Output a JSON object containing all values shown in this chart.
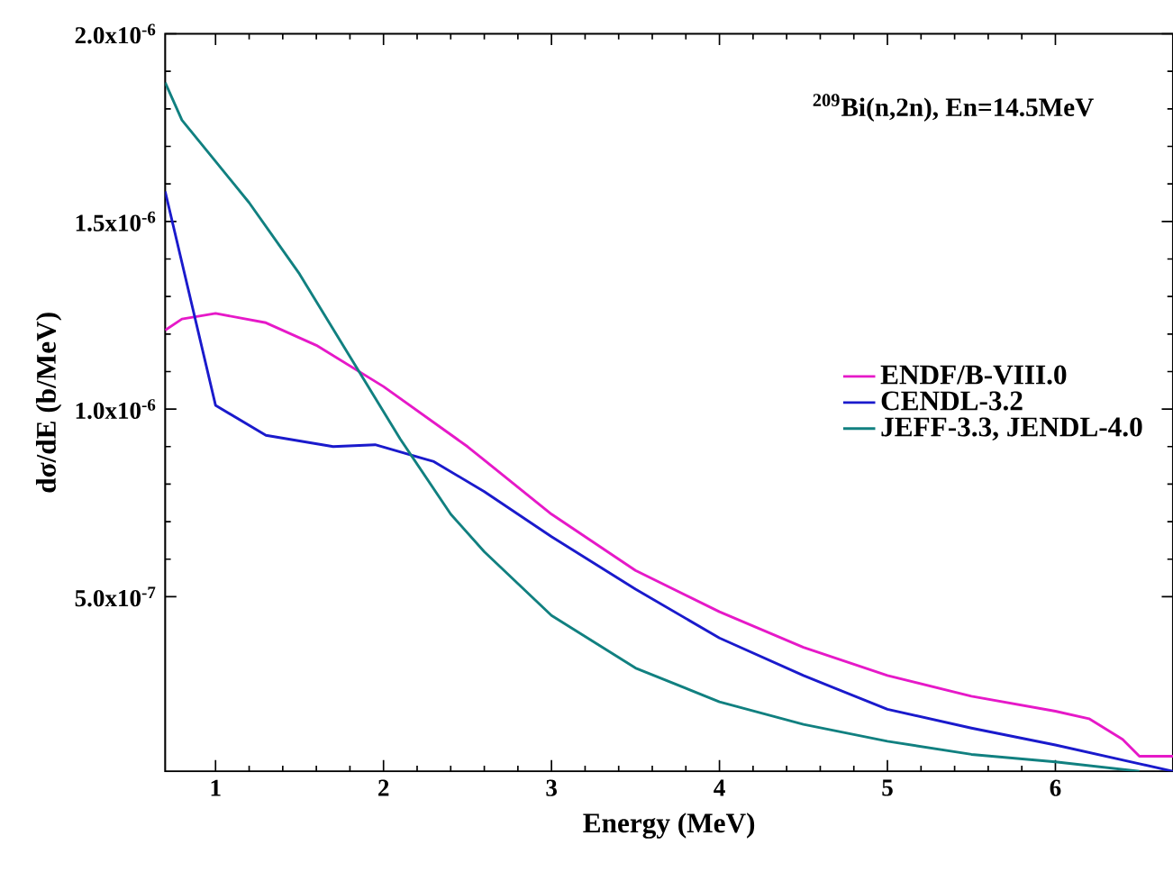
{
  "chart_data": {
    "type": "line",
    "xlabel": "Energy (MeV)",
    "ylabel": "dσ/dE (b/MeV)",
    "annotations": [
      "$^{209}$Bi(n,2n), En=14.5MeV"
    ],
    "xlim": [
      0.7,
      6.7
    ],
    "xticks": [
      1,
      2,
      3,
      4,
      5,
      6
    ],
    "ylim": [
      3.5e-08,
      2e-06
    ],
    "yticks": [
      {
        "value": 5e-07,
        "label": "5.0x10$^{-7}$"
      },
      {
        "value": 1e-06,
        "label": "1.0x10$^{-6}$"
      },
      {
        "value": 1.5e-06,
        "label": "1.5x10$^{-6}$"
      },
      {
        "value": 2e-06,
        "label": "2.0x10$^{-6}$"
      }
    ],
    "grid": false,
    "legend": "right",
    "marker": "none",
    "line_style": "solid",
    "series": [
      {
        "name": "ENDF/B-VIII.0",
        "color": "#e619c8",
        "x": [
          0.7,
          0.8,
          1.0,
          1.3,
          1.6,
          2.0,
          2.5,
          3.0,
          3.5,
          4.0,
          4.5,
          5.0,
          5.5,
          6.0,
          6.2,
          6.4,
          6.5,
          6.7
        ],
        "values": [
          1.21e-06,
          1.24e-06,
          1.255e-06,
          1.23e-06,
          1.17e-06,
          1.06e-06,
          9e-07,
          7.2e-07,
          5.7e-07,
          4.6e-07,
          3.65e-07,
          2.9e-07,
          2.35e-07,
          1.95e-07,
          1.75e-07,
          1.2e-07,
          7.5e-08,
          7.5e-08
        ]
      },
      {
        "name": "CENDL-3.2",
        "color": "#1a1acc",
        "x": [
          0.7,
          1.0,
          1.3,
          1.7,
          1.95,
          2.3,
          2.6,
          3.0,
          3.5,
          4.0,
          4.5,
          5.0,
          5.5,
          6.0,
          6.5,
          6.7
        ],
        "values": [
          1.58e-06,
          1.01e-06,
          9.3e-07,
          9e-07,
          9.05e-07,
          8.6e-07,
          7.8e-07,
          6.6e-07,
          5.2e-07,
          3.9e-07,
          2.9e-07,
          2e-07,
          1.5e-07,
          1.05e-07,
          5.5e-08,
          3.5e-08
        ]
      },
      {
        "name": "JEFF-3.3, JENDL-4.0",
        "color": "#118080",
        "x": [
          0.7,
          0.8,
          1.0,
          1.2,
          1.5,
          1.8,
          2.1,
          2.4,
          2.6,
          3.0,
          3.5,
          4.0,
          4.5,
          5.0,
          5.5,
          6.0,
          6.5
        ],
        "values": [
          1.87e-06,
          1.77e-06,
          1.66e-06,
          1.55e-06,
          1.36e-06,
          1.14e-06,
          9.2e-07,
          7.2e-07,
          6.2e-07,
          4.5e-07,
          3.1e-07,
          2.2e-07,
          1.6e-07,
          1.15e-07,
          8e-08,
          6e-08,
          3.5e-08
        ]
      }
    ]
  }
}
